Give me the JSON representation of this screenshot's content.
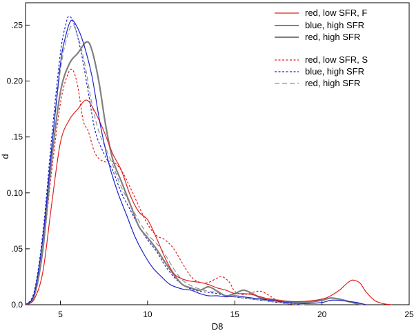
{
  "chart_data": {
    "type": "line",
    "title": "",
    "xlabel": "D8",
    "ylabel": "d",
    "xlim": [
      3,
      25
    ],
    "ylim": [
      0,
      0.27
    ],
    "grid": false,
    "legend_placement": "top-right",
    "x_ticks": [
      {
        "value": 5,
        "label": "5"
      },
      {
        "value": 10,
        "label": "10"
      },
      {
        "value": 15,
        "label": "15"
      },
      {
        "value": 20,
        "label": "20"
      },
      {
        "value": 25,
        "label": "25"
      }
    ],
    "y_ticks": [
      {
        "value": 0.0,
        "label": "0.0"
      },
      {
        "value": 0.05,
        "label": ".05"
      },
      {
        "value": 0.1,
        "label": "0.10"
      },
      {
        "value": 0.15,
        "label": ".15"
      },
      {
        "value": 0.2,
        "label": "0.20"
      },
      {
        "value": 0.25,
        "label": ".25"
      }
    ],
    "series": [
      {
        "name": "red, low SFR, F",
        "color": "#e0201c",
        "dash": "solid",
        "points": [
          [
            3.0,
            0.0
          ],
          [
            3.5,
            0.005
          ],
          [
            4.0,
            0.03
          ],
          [
            4.5,
            0.09
          ],
          [
            5.0,
            0.145
          ],
          [
            5.5,
            0.165
          ],
          [
            6.0,
            0.175
          ],
          [
            6.5,
            0.183
          ],
          [
            7.0,
            0.172
          ],
          [
            7.5,
            0.155
          ],
          [
            8.0,
            0.135
          ],
          [
            8.5,
            0.12
          ],
          [
            9.0,
            0.098
          ],
          [
            9.5,
            0.083
          ],
          [
            10.0,
            0.076
          ],
          [
            10.5,
            0.06
          ],
          [
            11.0,
            0.042
          ],
          [
            11.5,
            0.028
          ],
          [
            12.0,
            0.023
          ],
          [
            12.5,
            0.021
          ],
          [
            13.0,
            0.02
          ],
          [
            13.5,
            0.018
          ],
          [
            14.0,
            0.015
          ],
          [
            14.5,
            0.013
          ],
          [
            15.0,
            0.01
          ],
          [
            15.5,
            0.01
          ],
          [
            16.0,
            0.009
          ],
          [
            16.5,
            0.007
          ],
          [
            17.0,
            0.005
          ],
          [
            18.0,
            0.003
          ],
          [
            19.0,
            0.003
          ],
          [
            20.0,
            0.005
          ],
          [
            20.5,
            0.008
          ],
          [
            21.0,
            0.013
          ],
          [
            21.5,
            0.02
          ],
          [
            21.8,
            0.022
          ],
          [
            22.2,
            0.019
          ],
          [
            22.5,
            0.012
          ],
          [
            23.0,
            0.004
          ],
          [
            23.5,
            0.001
          ],
          [
            24.0,
            0.0
          ]
        ]
      },
      {
        "name": "blue, high SFR",
        "color": "#1a24c8",
        "dash": "solid",
        "points": [
          [
            3.0,
            0.0
          ],
          [
            3.5,
            0.01
          ],
          [
            4.0,
            0.06
          ],
          [
            4.5,
            0.14
          ],
          [
            5.0,
            0.215
          ],
          [
            5.3,
            0.24
          ],
          [
            5.6,
            0.254
          ],
          [
            5.9,
            0.25
          ],
          [
            6.3,
            0.235
          ],
          [
            6.8,
            0.205
          ],
          [
            7.3,
            0.16
          ],
          [
            7.8,
            0.125
          ],
          [
            8.3,
            0.1
          ],
          [
            8.8,
            0.08
          ],
          [
            9.3,
            0.06
          ],
          [
            9.8,
            0.045
          ],
          [
            10.3,
            0.033
          ],
          [
            10.8,
            0.025
          ],
          [
            11.3,
            0.018
          ],
          [
            12.0,
            0.014
          ],
          [
            12.5,
            0.013
          ],
          [
            13.0,
            0.01
          ],
          [
            13.5,
            0.008
          ],
          [
            14.0,
            0.008
          ],
          [
            14.5,
            0.007
          ],
          [
            15.0,
            0.008
          ],
          [
            15.5,
            0.007
          ],
          [
            16.0,
            0.006
          ],
          [
            17.0,
            0.004
          ],
          [
            18.0,
            0.002
          ],
          [
            19.0,
            0.001
          ],
          [
            20.0,
            0.002
          ],
          [
            20.5,
            0.004
          ],
          [
            21.0,
            0.004
          ],
          [
            21.5,
            0.003
          ],
          [
            22.0,
            0.002
          ],
          [
            22.5,
            0.0
          ]
        ]
      },
      {
        "name": "red, high SFR",
        "color": "#808080",
        "dash": "solid",
        "width": 2.2,
        "points": [
          [
            3.0,
            0.0
          ],
          [
            3.5,
            0.008
          ],
          [
            4.0,
            0.05
          ],
          [
            4.5,
            0.13
          ],
          [
            5.0,
            0.19
          ],
          [
            5.5,
            0.215
          ],
          [
            6.0,
            0.225
          ],
          [
            6.5,
            0.235
          ],
          [
            6.8,
            0.228
          ],
          [
            7.2,
            0.2
          ],
          [
            7.6,
            0.16
          ],
          [
            8.0,
            0.13
          ],
          [
            8.5,
            0.11
          ],
          [
            9.0,
            0.09
          ],
          [
            9.5,
            0.07
          ],
          [
            10.0,
            0.06
          ],
          [
            10.5,
            0.05
          ],
          [
            11.0,
            0.038
          ],
          [
            11.5,
            0.027
          ],
          [
            12.0,
            0.018
          ],
          [
            12.5,
            0.015
          ],
          [
            13.0,
            0.013
          ],
          [
            13.5,
            0.016
          ],
          [
            14.0,
            0.012
          ],
          [
            14.5,
            0.008
          ],
          [
            15.0,
            0.01
          ],
          [
            15.5,
            0.013
          ],
          [
            16.0,
            0.01
          ],
          [
            16.5,
            0.006
          ],
          [
            17.0,
            0.005
          ],
          [
            18.0,
            0.003
          ],
          [
            19.0,
            0.002
          ],
          [
            20.0,
            0.004
          ],
          [
            20.5,
            0.006
          ],
          [
            21.0,
            0.005
          ],
          [
            21.5,
            0.003
          ],
          [
            22.0,
            0.001
          ],
          [
            22.5,
            0.0
          ]
        ]
      },
      {
        "name": "red, low SFR, S",
        "color": "#e0201c",
        "dash": "dotted",
        "points": [
          [
            3.0,
            0.0
          ],
          [
            3.5,
            0.008
          ],
          [
            4.0,
            0.05
          ],
          [
            4.5,
            0.12
          ],
          [
            5.0,
            0.18
          ],
          [
            5.4,
            0.205
          ],
          [
            5.7,
            0.21
          ],
          [
            6.0,
            0.195
          ],
          [
            6.3,
            0.165
          ],
          [
            6.6,
            0.155
          ],
          [
            7.0,
            0.135
          ],
          [
            7.5,
            0.128
          ],
          [
            8.0,
            0.128
          ],
          [
            8.5,
            0.12
          ],
          [
            9.0,
            0.105
          ],
          [
            9.5,
            0.088
          ],
          [
            10.0,
            0.072
          ],
          [
            10.5,
            0.062
          ],
          [
            11.0,
            0.058
          ],
          [
            11.5,
            0.05
          ],
          [
            12.0,
            0.037
          ],
          [
            12.5,
            0.025
          ],
          [
            13.0,
            0.02
          ],
          [
            13.5,
            0.02
          ],
          [
            14.0,
            0.024
          ],
          [
            14.3,
            0.025
          ],
          [
            14.7,
            0.02
          ],
          [
            15.0,
            0.012
          ],
          [
            15.5,
            0.009
          ],
          [
            16.0,
            0.011
          ],
          [
            16.5,
            0.012
          ],
          [
            17.0,
            0.008
          ],
          [
            17.5,
            0.003
          ],
          [
            18.0,
            0.001
          ],
          [
            18.5,
            0.0
          ]
        ]
      },
      {
        "name": "blue, high SFR",
        "color": "#1a24c8",
        "dash": "dotted",
        "points": [
          [
            3.0,
            0.0
          ],
          [
            3.5,
            0.012
          ],
          [
            4.0,
            0.065
          ],
          [
            4.5,
            0.15
          ],
          [
            5.0,
            0.225
          ],
          [
            5.3,
            0.25
          ],
          [
            5.5,
            0.258
          ],
          [
            5.8,
            0.25
          ],
          [
            6.2,
            0.225
          ],
          [
            6.6,
            0.19
          ],
          [
            7.0,
            0.155
          ],
          [
            7.5,
            0.135
          ],
          [
            8.0,
            0.12
          ],
          [
            8.5,
            0.1
          ],
          [
            9.0,
            0.085
          ],
          [
            9.5,
            0.07
          ],
          [
            10.0,
            0.058
          ],
          [
            10.5,
            0.048
          ],
          [
            11.0,
            0.035
          ],
          [
            11.5,
            0.025
          ],
          [
            12.0,
            0.018
          ],
          [
            12.5,
            0.014
          ],
          [
            13.0,
            0.012
          ],
          [
            13.5,
            0.011
          ],
          [
            14.0,
            0.01
          ],
          [
            14.5,
            0.008
          ],
          [
            15.0,
            0.007
          ],
          [
            15.5,
            0.006
          ],
          [
            16.0,
            0.005
          ],
          [
            17.0,
            0.003
          ],
          [
            18.0,
            0.001
          ],
          [
            19.0,
            0.0
          ]
        ]
      },
      {
        "name": "red, high SFR",
        "color": "#909090",
        "dash": "dashed",
        "points": [
          [
            3.0,
            0.0
          ],
          [
            3.5,
            0.01
          ],
          [
            4.0,
            0.06
          ],
          [
            4.5,
            0.14
          ],
          [
            5.0,
            0.21
          ],
          [
            5.4,
            0.24
          ],
          [
            5.7,
            0.25
          ],
          [
            6.0,
            0.24
          ],
          [
            6.4,
            0.215
          ],
          [
            6.8,
            0.18
          ],
          [
            7.2,
            0.155
          ],
          [
            7.6,
            0.14
          ],
          [
            8.0,
            0.125
          ],
          [
            8.5,
            0.105
          ],
          [
            9.0,
            0.09
          ],
          [
            9.5,
            0.075
          ],
          [
            10.0,
            0.063
          ],
          [
            10.5,
            0.055
          ],
          [
            11.0,
            0.045
          ],
          [
            11.5,
            0.032
          ],
          [
            12.0,
            0.022
          ],
          [
            12.5,
            0.017
          ],
          [
            13.0,
            0.014
          ],
          [
            13.5,
            0.012
          ],
          [
            14.0,
            0.011
          ],
          [
            14.5,
            0.008
          ],
          [
            15.0,
            0.007
          ],
          [
            15.5,
            0.006
          ],
          [
            16.0,
            0.005
          ],
          [
            17.0,
            0.003
          ],
          [
            18.0,
            0.001
          ],
          [
            19.0,
            0.0
          ]
        ]
      }
    ],
    "legend": [
      {
        "label": "red, low SFR, F",
        "series": 0
      },
      {
        "label": "blue, high SFR",
        "series": 1
      },
      {
        "label": "red, high SFR",
        "series": 2
      },
      {
        "label": "red, low SFR, S",
        "series": 3
      },
      {
        "label": "blue, high SFR",
        "series": 4
      },
      {
        "label": "red, high SFR",
        "series": 5
      }
    ]
  }
}
